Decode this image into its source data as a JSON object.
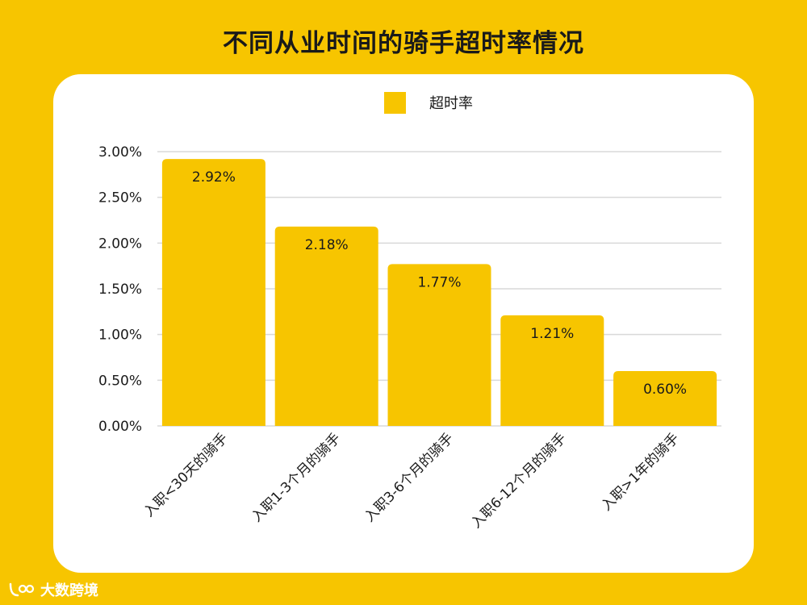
{
  "title": "不同从业时间的骑手超时率情况",
  "watermark": {
    "text": "大数跨境",
    "icon": "brand-logo-icon"
  },
  "colors": {
    "background": "#f7c500",
    "bar": "#f7c500",
    "grid": "#d9d9d9",
    "text": "#1a1a1a",
    "card": "#ffffff"
  },
  "chart_data": {
    "type": "bar",
    "title": "不同从业时间的骑手超时率情况",
    "categories": [
      "入职<30天的骑手",
      "入职1-3个月的骑手",
      "入职3-6个月的骑手",
      "入职6-12个月的骑手",
      "入职>1年的骑手"
    ],
    "series": [
      {
        "name": "超时率",
        "values": [
          2.92,
          2.18,
          1.77,
          1.21,
          0.6
        ]
      }
    ],
    "data_labels": [
      "2.92%",
      "2.18%",
      "1.77%",
      "1.21%",
      "0.60%"
    ],
    "ylim": [
      0,
      3
    ],
    "yticks": [
      "0.00%",
      "0.50%",
      "1.00%",
      "1.50%",
      "2.00%",
      "2.50%",
      "3.00%"
    ],
    "ytick_values": [
      0,
      0.5,
      1,
      1.5,
      2,
      2.5,
      3
    ],
    "grid": true,
    "legend": "top-center",
    "xlabel": "",
    "ylabel": ""
  }
}
